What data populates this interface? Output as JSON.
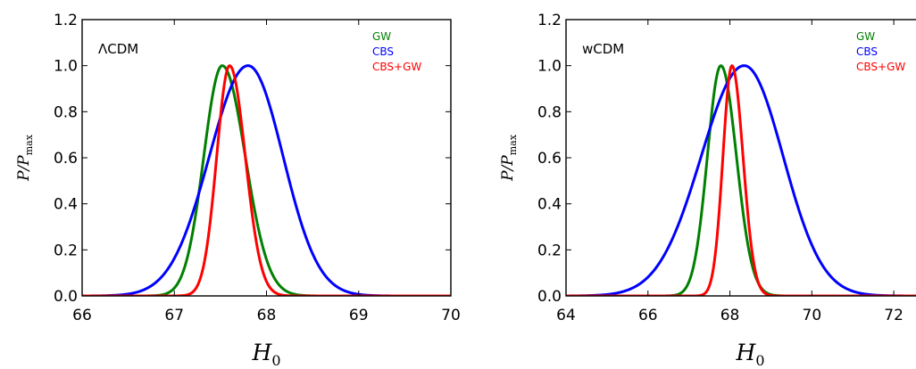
{
  "chart_data": [
    {
      "type": "line",
      "panel_label": "ΛCDM",
      "xlabel": "H",
      "xlabel_sub": "0",
      "ylabel": "P/P",
      "ylabel_sub": "max",
      "xlim": [
        66,
        70
      ],
      "ylim": [
        0,
        1.2
      ],
      "xticks": [
        66,
        67,
        68,
        69,
        70
      ],
      "yticks": [
        0.0,
        0.2,
        0.4,
        0.6,
        0.8,
        1.0,
        1.2
      ],
      "legend_position": "top-right",
      "series": [
        {
          "name": "GW",
          "color": "#008000",
          "peak": 67.52,
          "sigma_left": 0.2,
          "sigma_right": 0.25
        },
        {
          "name": "CBS",
          "color": "#0000ff",
          "peak": 67.8,
          "sigma_left": 0.42,
          "sigma_right": 0.38
        },
        {
          "name": "CBS+GW",
          "color": "#ff0000",
          "peak": 67.6,
          "sigma_left": 0.14,
          "sigma_right": 0.17
        }
      ]
    },
    {
      "type": "line",
      "panel_label": "wCDM",
      "xlabel": "H",
      "xlabel_sub": "0",
      "ylabel": "P/P",
      "ylabel_sub": "max",
      "xlim": [
        64,
        73
      ],
      "ylim": [
        0,
        1.2
      ],
      "xticks": [
        64,
        66,
        68,
        70,
        72
      ],
      "yticks": [
        0.0,
        0.2,
        0.4,
        0.6,
        0.8,
        1.0,
        1.2
      ],
      "legend_position": "top-right",
      "series": [
        {
          "name": "GW",
          "color": "#008000",
          "peak": 67.78,
          "sigma_left": 0.33,
          "sigma_right": 0.38
        },
        {
          "name": "CBS",
          "color": "#0000ff",
          "peak": 68.35,
          "sigma_left": 1.05,
          "sigma_right": 0.95
        },
        {
          "name": "CBS+GW",
          "color": "#ff0000",
          "peak": 68.05,
          "sigma_left": 0.22,
          "sigma_right": 0.27
        }
      ]
    }
  ]
}
